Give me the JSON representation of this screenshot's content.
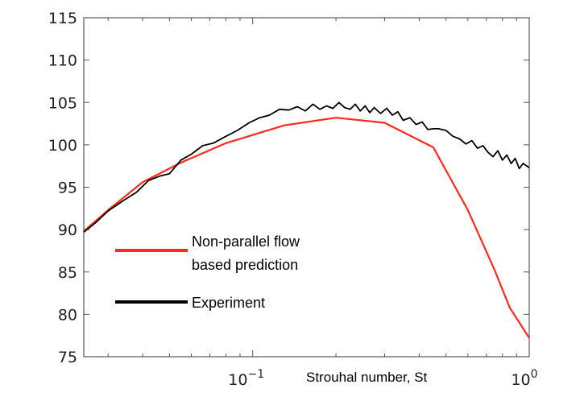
{
  "chart_data": {
    "type": "line",
    "title": "",
    "xlabel": "Strouhal number,  St",
    "ylabel": "",
    "xscale": "log",
    "xlim": [
      0.0245,
      1.0
    ],
    "ylim": [
      75,
      115
    ],
    "yticks": [
      75,
      80,
      85,
      90,
      95,
      100,
      105,
      110,
      115
    ],
    "xticks": [
      {
        "value": 0.1,
        "base": "10",
        "exp": "−1"
      },
      {
        "value": 1.0,
        "base": "10",
        "exp": "0"
      }
    ],
    "grid": false,
    "legend_position": "left",
    "series": [
      {
        "name": "Non-parallel flow based prediction",
        "legend_lines": [
          "Non-parallel flow",
          "based prediction"
        ],
        "color": "#ff2a1a",
        "x": [
          0.0245,
          0.03,
          0.04,
          0.055,
          0.08,
          0.13,
          0.2,
          0.3,
          0.45,
          0.6,
          0.75,
          0.85,
          1.0
        ],
        "y": [
          89.8,
          92.3,
          95.6,
          97.9,
          100.2,
          102.3,
          103.2,
          102.6,
          99.7,
          92.3,
          85.2,
          80.8,
          77.2
        ]
      },
      {
        "name": "Experiment",
        "legend_lines": [
          "Experiment"
        ],
        "color": "#000000",
        "x": [
          0.0245,
          0.027,
          0.03,
          0.034,
          0.038,
          0.042,
          0.046,
          0.05,
          0.055,
          0.06,
          0.066,
          0.072,
          0.08,
          0.088,
          0.097,
          0.106,
          0.115,
          0.125,
          0.135,
          0.145,
          0.155,
          0.165,
          0.175,
          0.185,
          0.195,
          0.205,
          0.215,
          0.225,
          0.235,
          0.245,
          0.255,
          0.265,
          0.275,
          0.29,
          0.305,
          0.32,
          0.335,
          0.35,
          0.37,
          0.39,
          0.41,
          0.43,
          0.45,
          0.47,
          0.5,
          0.53,
          0.56,
          0.59,
          0.62,
          0.65,
          0.68,
          0.71,
          0.74,
          0.77,
          0.8,
          0.83,
          0.86,
          0.89,
          0.92,
          0.95,
          1.0
        ],
        "y": [
          89.7,
          90.8,
          92.2,
          93.4,
          94.4,
          95.8,
          96.3,
          96.6,
          98.2,
          98.9,
          99.9,
          100.2,
          101.0,
          101.7,
          102.6,
          103.2,
          103.5,
          104.2,
          104.1,
          104.5,
          104.0,
          104.8,
          104.2,
          104.6,
          104.3,
          105.0,
          104.4,
          104.2,
          104.8,
          104.0,
          104.6,
          103.8,
          104.4,
          103.7,
          104.3,
          103.5,
          103.9,
          102.9,
          103.2,
          102.4,
          102.7,
          101.8,
          101.9,
          101.9,
          101.7,
          101.0,
          100.7,
          100.1,
          100.5,
          99.6,
          99.9,
          99.1,
          98.6,
          99.3,
          98.2,
          98.8,
          97.8,
          98.4,
          97.2,
          97.8,
          97.3
        ]
      }
    ]
  }
}
